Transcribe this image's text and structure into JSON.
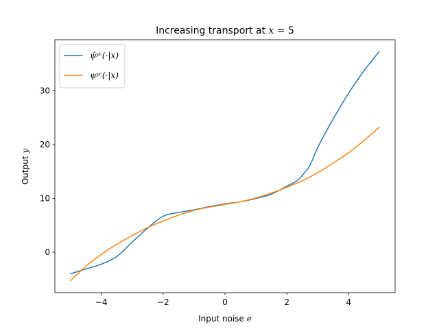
{
  "chart_data": {
    "type": "line",
    "title": "Increasing transport at x = 5",
    "xlabel": "Input noise e",
    "ylabel": "Output y",
    "xlim": [
      -5.5,
      5.5
    ],
    "ylim": [
      -7.5,
      39.5
    ],
    "xticks": [
      -4,
      -2,
      0,
      2,
      4
    ],
    "yticks": [
      0,
      10,
      20,
      30
    ],
    "grid": false,
    "legend_position": "top-left",
    "series": [
      {
        "name": "ψ̂ʸᶜ(·|x)",
        "color": "#1f77b4",
        "points": [
          [
            -5.0,
            -4.0
          ],
          [
            -4.5,
            -3.1
          ],
          [
            -4.0,
            -2.2
          ],
          [
            -3.5,
            -0.8
          ],
          [
            -3.0,
            1.9
          ],
          [
            -2.5,
            4.5
          ],
          [
            -2.0,
            6.7
          ],
          [
            -1.5,
            7.4
          ],
          [
            -1.0,
            7.9
          ],
          [
            -0.5,
            8.5
          ],
          [
            0.0,
            9.0
          ],
          [
            0.5,
            9.4
          ],
          [
            1.0,
            10.0
          ],
          [
            1.5,
            10.8
          ],
          [
            2.0,
            12.3
          ],
          [
            2.3,
            13.2
          ],
          [
            2.5,
            14.3
          ],
          [
            2.75,
            16.2
          ],
          [
            3.0,
            19.5
          ],
          [
            3.5,
            24.8
          ],
          [
            4.0,
            29.6
          ],
          [
            4.5,
            33.8
          ],
          [
            5.0,
            37.4
          ]
        ]
      },
      {
        "name": "ψʸᶜ(·|x)",
        "color": "#ff7f0e",
        "points": [
          [
            -5.0,
            -5.3
          ],
          [
            -4.5,
            -2.6
          ],
          [
            -4.0,
            -0.4
          ],
          [
            -3.5,
            1.5
          ],
          [
            -3.0,
            3.1
          ],
          [
            -2.5,
            4.6
          ],
          [
            -2.0,
            5.8
          ],
          [
            -1.5,
            6.9
          ],
          [
            -1.0,
            7.8
          ],
          [
            -0.5,
            8.4
          ],
          [
            0.0,
            8.9
          ],
          [
            0.5,
            9.4
          ],
          [
            1.0,
            10.1
          ],
          [
            1.5,
            11.0
          ],
          [
            2.0,
            12.1
          ],
          [
            2.5,
            13.3
          ],
          [
            3.0,
            14.8
          ],
          [
            3.5,
            16.6
          ],
          [
            4.0,
            18.5
          ],
          [
            4.5,
            20.8
          ],
          [
            5.0,
            23.3
          ]
        ]
      }
    ]
  }
}
